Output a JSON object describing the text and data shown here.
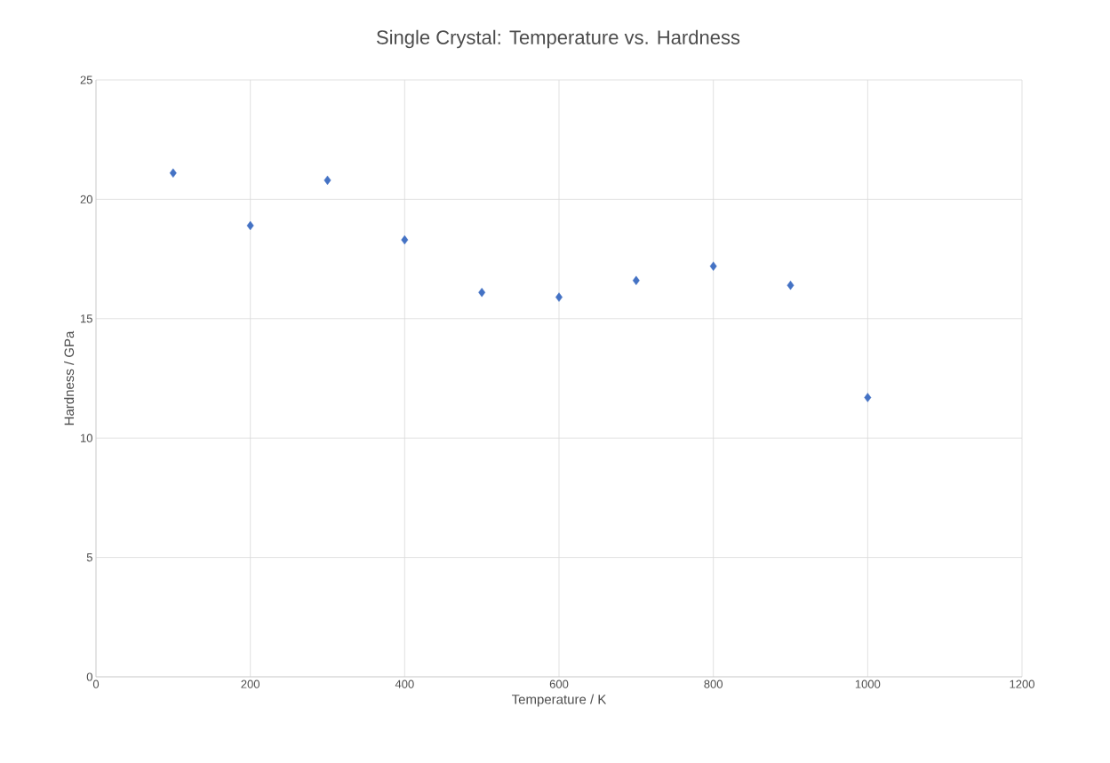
{
  "chart_data": {
    "type": "scatter",
    "title": "Single Crystal: Temperature vs. Hardness",
    "xlabel": "Temperature / K",
    "ylabel": "Hardness / GPa",
    "x": [
      100,
      200,
      300,
      400,
      500,
      600,
      700,
      800,
      900,
      1000
    ],
    "series": [
      {
        "color": "#4472c4",
        "values": [
          21.1,
          18.9,
          20.8,
          18.3,
          16.1,
          15.9,
          16.6,
          17.2,
          16.4,
          11.7
        ]
      }
    ],
    "xlim": [
      0,
      1200
    ],
    "ylim": [
      0,
      25
    ],
    "xticks": [
      0,
      200,
      400,
      600,
      800,
      1000,
      1200
    ],
    "yticks": [
      0,
      5,
      10,
      15,
      20,
      25
    ],
    "grid": true,
    "marker": "diamond"
  }
}
